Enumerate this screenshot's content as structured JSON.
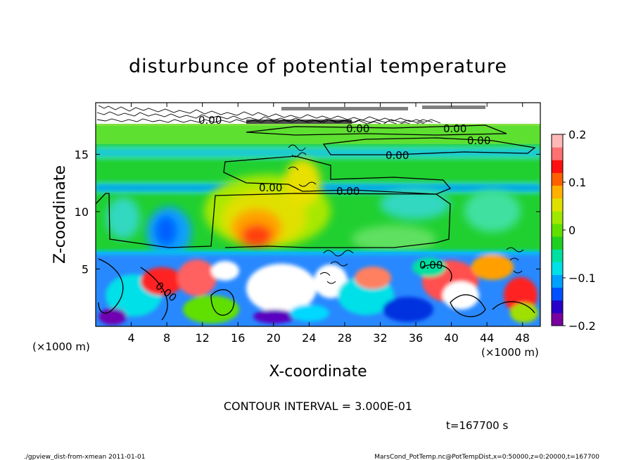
{
  "chart_data": {
    "type": "heatmap",
    "title": "disturbunce of potential temperature",
    "xlabel": "X-coordinate",
    "ylabel": "Z-coordinate",
    "x_unit": "(×1000 m)",
    "x_unit_right": "(×1000 m)",
    "z_unit": "(×1000 m)",
    "xlim": [
      0,
      50
    ],
    "ylim": [
      0,
      19.5
    ],
    "x_ticks": [
      4,
      8,
      12,
      16,
      20,
      24,
      28,
      32,
      36,
      40,
      44,
      48
    ],
    "y_ticks": [
      5,
      10,
      15
    ],
    "colorbar": {
      "ticks": [
        0.2,
        0.1,
        0,
        -0.1,
        -0.2
      ],
      "tick_labels": [
        "0.2",
        "0.1",
        "0",
        "−0.1",
        "−0.2"
      ],
      "range": [
        -0.2,
        0.2
      ],
      "colors": [
        "#7a00a0",
        "#2800c8",
        "#0050ff",
        "#00a0ff",
        "#00e0e8",
        "#00e0a0",
        "#20d020",
        "#60e000",
        "#a0e800",
        "#e0e000",
        "#ffb000",
        "#ff6000",
        "#ff1010",
        "#ff7070",
        "#ffb8b8"
      ]
    },
    "contour_labels": [
      "0.00",
      "0.00",
      "0.00",
      "0.00",
      "0.00",
      "0.00",
      "0.00",
      "0.00",
      "0.00"
    ],
    "contour_interval_text": "CONTOUR INTERVAL = 3.000E-01",
    "time_text": "t=167700 s",
    "regions": [
      {
        "name": "upper-noise-layer",
        "z": [
          18.3,
          19.5
        ],
        "value": "mixed"
      },
      {
        "name": "upper-green-band",
        "z": [
          16.5,
          18.3
        ],
        "value": 0.02
      },
      {
        "name": "cyan-band-16",
        "z": [
          15.5,
          16.5
        ],
        "value": -0.06
      },
      {
        "name": "cyan-band-12",
        "z": [
          11.8,
          12.8
        ],
        "value": -0.08
      },
      {
        "name": "warm-anomaly",
        "x": [
          18,
          22
        ],
        "z": [
          6.5,
          10
        ],
        "value": 0.15
      },
      {
        "name": "turbulent-layer",
        "z": [
          0,
          6.5
        ],
        "value": "mixed"
      }
    ]
  },
  "footer": {
    "left": "./gpview_dist-from-xmean  2011-01-01",
    "right": "MarsCond_PotTemp.nc@PotTempDist,x=0:50000,z=0:20000,t=167700"
  }
}
